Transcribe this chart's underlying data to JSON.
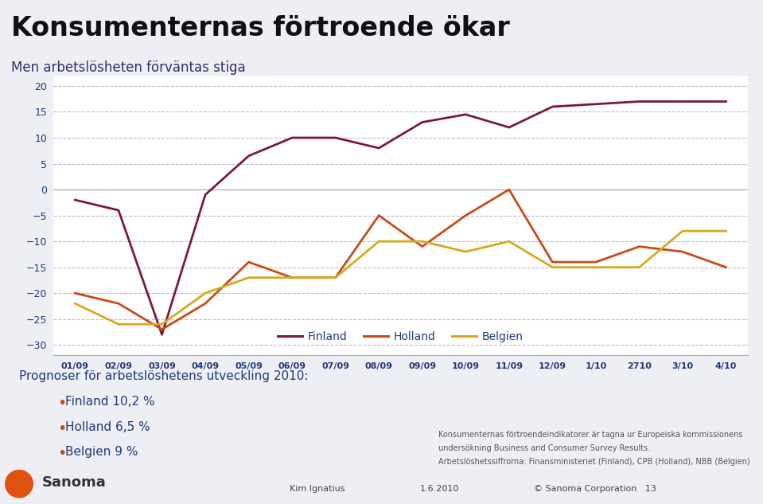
{
  "title": "Konsumenternas förtroende ökar",
  "subtitle": "Men arbetslösheten förväntas stiga",
  "x_labels": [
    "01/09",
    "02/09",
    "03/09",
    "04/09",
    "05/09",
    "06/09",
    "07/09",
    "08/09",
    "09/09",
    "10/09",
    "11/09",
    "12/09",
    "1/10",
    "2710",
    "3/10",
    "4/10"
  ],
  "finland": [
    -2,
    -4,
    -28,
    -1,
    6.5,
    10,
    10,
    8,
    13,
    14.5,
    12,
    16,
    16.5,
    17,
    17,
    17
  ],
  "holland": [
    -20,
    -22,
    -27,
    -22,
    -14,
    -17,
    -17,
    -5,
    -11,
    -5,
    0,
    -14,
    -14,
    -11,
    -12,
    -15
  ],
  "belgien": [
    -22,
    -26,
    -26,
    -20,
    -17,
    -17,
    -17,
    -10,
    -10,
    -12,
    -10,
    -15,
    -15,
    -15,
    -8,
    -8
  ],
  "finland_color": "#7B1A38",
  "holland_color": "#C84B15",
  "belgien_color": "#D4A820",
  "ylim": [
    -32,
    22
  ],
  "yticks": [
    -30,
    -25,
    -20,
    -15,
    -10,
    -5,
    0,
    5,
    10,
    15,
    20
  ],
  "bg_color": "#EEEEF5",
  "plot_bg": "#FFFFFF",
  "grid_color": "#BBBBCC",
  "axis_label_color": "#1E3A7A",
  "title_color": "#111111",
  "subtitle_color": "#444444",
  "footer_text1": "Konsumenternas förtroendeindikatorer är tagna ur Europeiska kommissionens",
  "footer_text2": "undersökning Business and Consumer Survey Results.",
  "footer_text3": "Arbetslöshetssiffrorna: Finansministeriet (Finland), CPB (Holland), NBB (Belgien)",
  "bottom_left1": "Kim Ignatius",
  "bottom_center": "1.6.2010",
  "bottom_right": "© Sanoma Corporation   13",
  "prognos_title": "Prognoser för arbetslöshetens utveckling 2010:",
  "prognos_items": [
    "Finland 10,2 %",
    "Holland 6,5 %",
    "Belgien 9 %"
  ],
  "bullet_color": "#C84B15",
  "legend_labels": [
    "Finland",
    "Holland",
    "Belgien"
  ]
}
